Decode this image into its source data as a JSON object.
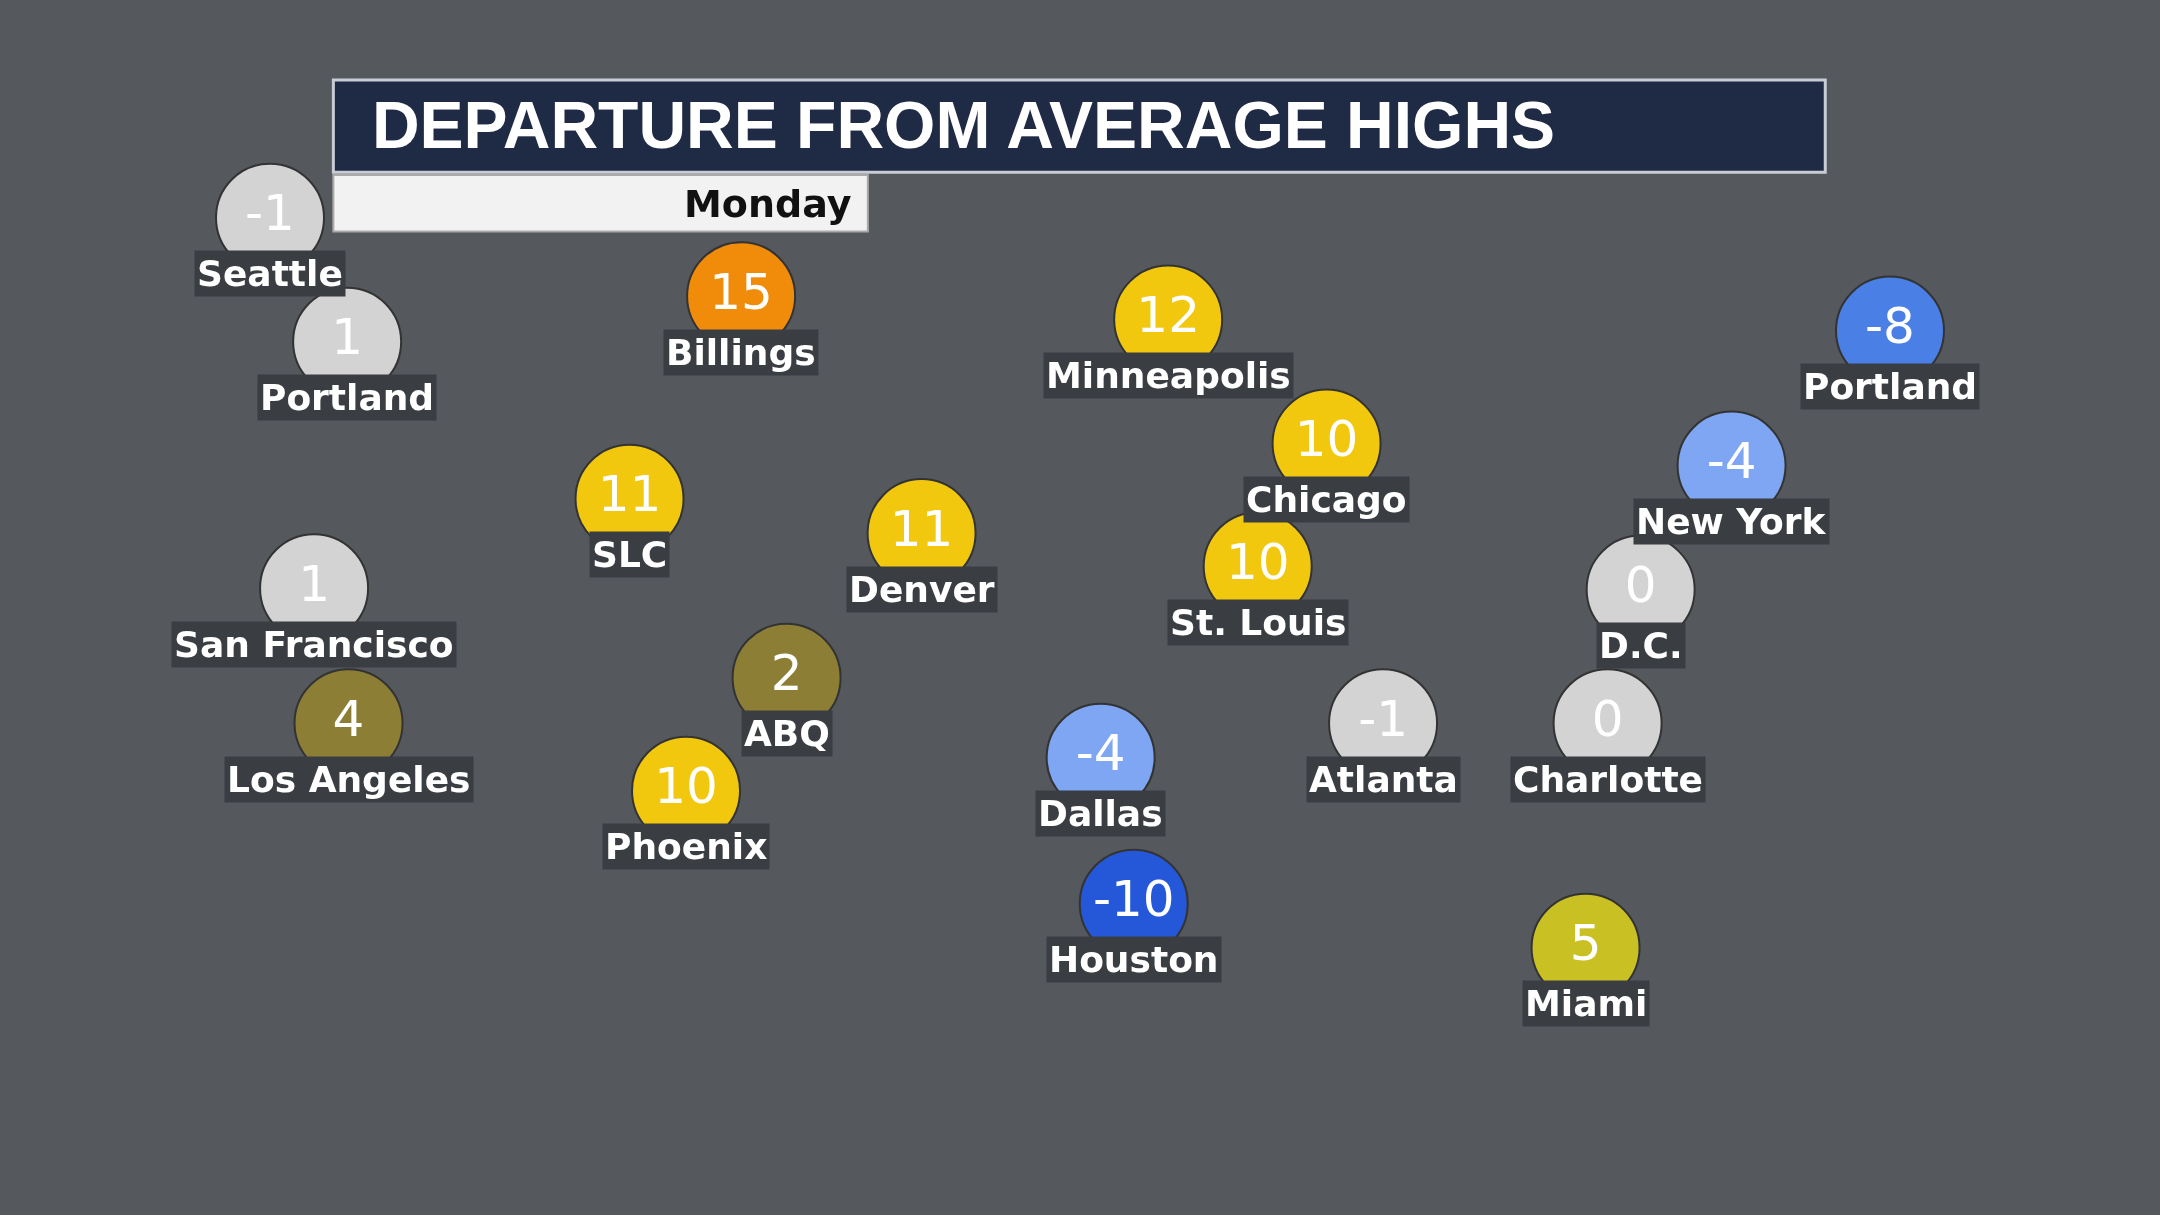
{
  "chart_data": {
    "type": "other",
    "title": "DEPARTURE FROM AVERAGE HIGHS",
    "subtitle": "Monday",
    "categories": [
      "Seattle",
      "Portland",
      "Billings",
      "Minneapolis",
      "Portland",
      "Chicago",
      "New York",
      "SLC",
      "Denver",
      "St. Louis",
      "San Francisco",
      "D.C.",
      "ABQ",
      "Los Angeles",
      "Atlanta",
      "Charlotte",
      "Dallas",
      "Phoenix",
      "Houston",
      "Miami"
    ],
    "values": [
      -1,
      1,
      15,
      12,
      -8,
      10,
      -4,
      11,
      11,
      10,
      1,
      0,
      2,
      4,
      -1,
      0,
      -4,
      10,
      -10,
      5
    ],
    "colors": [
      "#d3d3d3",
      "#d3d3d3",
      "#f08c0a",
      "#f2c80f",
      "#4a7fe6",
      "#f2c80f",
      "#7fa6f2",
      "#f2c80f",
      "#f2c80f",
      "#f2c80f",
      "#d3d3d3",
      "#d3d3d3",
      "#8c7f35",
      "#8c7f35",
      "#d3d3d3",
      "#d3d3d3",
      "#7fa6f2",
      "#f2c80f",
      "#2458d9",
      "#c9c124"
    ],
    "data_labels": true
  }
}
